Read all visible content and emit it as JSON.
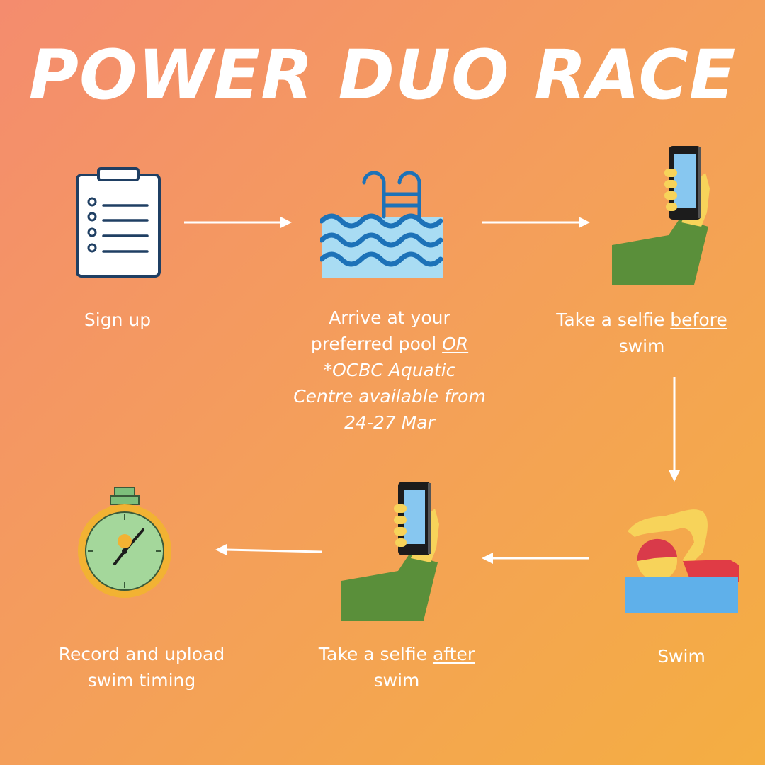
{
  "title": "POWER DUO RACE",
  "colors": {
    "background_start": "#f48c6e",
    "background_end": "#f4ae42",
    "text": "#ffffff"
  },
  "steps": [
    {
      "icon": "clipboard-icon",
      "lines": [
        {
          "parts": [
            {
              "text": "Sign up"
            }
          ]
        }
      ]
    },
    {
      "icon": "swimming-pool-icon",
      "lines": [
        {
          "parts": [
            {
              "text": "Arrive at your"
            }
          ]
        },
        {
          "parts": [
            {
              "text": "preferred pool "
            },
            {
              "text": "OR",
              "underline": true,
              "italic": true
            }
          ]
        },
        {
          "parts": [
            {
              "text": "*OCBC Aquatic",
              "italic": true
            }
          ]
        },
        {
          "parts": [
            {
              "text": "Centre available from",
              "italic": true
            }
          ]
        },
        {
          "parts": [
            {
              "text": "24-27 Mar",
              "italic": true
            }
          ]
        }
      ]
    },
    {
      "icon": "selfie-hand-icon",
      "lines": [
        {
          "parts": [
            {
              "text": "Take a selfie "
            },
            {
              "text": "before",
              "underline": true
            }
          ]
        },
        {
          "parts": [
            {
              "text": "swim"
            }
          ]
        }
      ]
    },
    {
      "icon": "swimmer-icon",
      "lines": [
        {
          "parts": [
            {
              "text": "Swim"
            }
          ]
        }
      ]
    },
    {
      "icon": "selfie-hand-icon",
      "lines": [
        {
          "parts": [
            {
              "text": "Take a selfie "
            },
            {
              "text": "after",
              "underline": true
            }
          ]
        },
        {
          "parts": [
            {
              "text": "swim"
            }
          ]
        }
      ]
    },
    {
      "icon": "stopwatch-icon",
      "lines": [
        {
          "parts": [
            {
              "text": "Record and upload"
            }
          ]
        },
        {
          "parts": [
            {
              "text": "swim timing"
            }
          ]
        }
      ]
    }
  ]
}
